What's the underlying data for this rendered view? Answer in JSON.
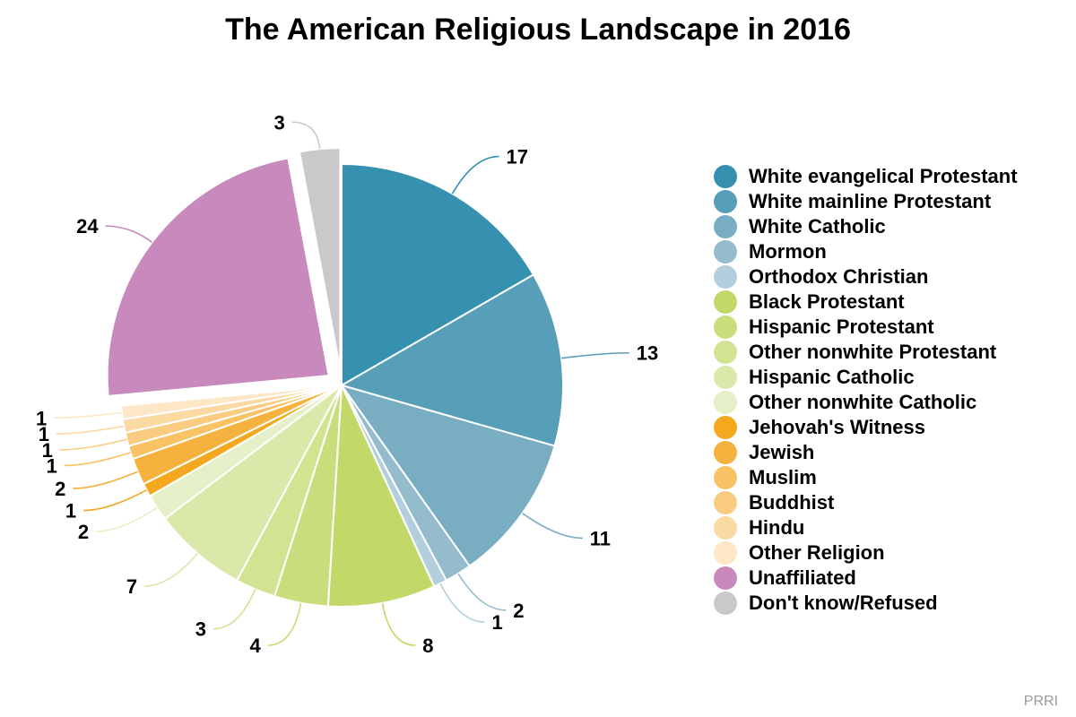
{
  "source": "PRRI",
  "chart_data": {
    "type": "pie",
    "title": "The American Religious Landscape in 2016",
    "legend_position": "right",
    "slices": [
      {
        "label": "White evangelical Protestant",
        "value": 17,
        "color": "#3591af"
      },
      {
        "label": "White mainline Protestant",
        "value": 13,
        "color": "#579fb8"
      },
      {
        "label": "White Catholic",
        "value": 11,
        "color": "#78adc2"
      },
      {
        "label": "Mormon",
        "value": 2,
        "color": "#95bccd"
      },
      {
        "label": "Orthodox Christian",
        "value": 1,
        "color": "#b3cfde"
      },
      {
        "label": "Black Protestant",
        "value": 8,
        "color": "#c2d96a"
      },
      {
        "label": "Hispanic Protestant",
        "value": 4,
        "color": "#c9dd7c"
      },
      {
        "label": "Other nonwhite Protestant",
        "value": 3,
        "color": "#d2e391"
      },
      {
        "label": "Hispanic Catholic",
        "value": 7,
        "color": "#dae8a9"
      },
      {
        "label": "Other nonwhite Catholic",
        "value": 2,
        "color": "#e6f0c8"
      },
      {
        "label": "Jehovah's Witness",
        "value": 1,
        "color": "#f4a81e"
      },
      {
        "label": "Jewish",
        "value": 2,
        "color": "#f6b23e"
      },
      {
        "label": "Muslim",
        "value": 1,
        "color": "#f8c265"
      },
      {
        "label": "Buddhist",
        "value": 1,
        "color": "#f9cc81"
      },
      {
        "label": "Hindu",
        "value": 1,
        "color": "#fbd9a3"
      },
      {
        "label": "Other Religion",
        "value": 1,
        "color": "#fde7c6"
      },
      {
        "label": "Unaffiliated",
        "value": 24,
        "color": "#c889bd",
        "exploded": true
      },
      {
        "label": "Don't know/Refused",
        "value": 3,
        "color": "#c9c9cb",
        "exploded": true
      }
    ]
  }
}
